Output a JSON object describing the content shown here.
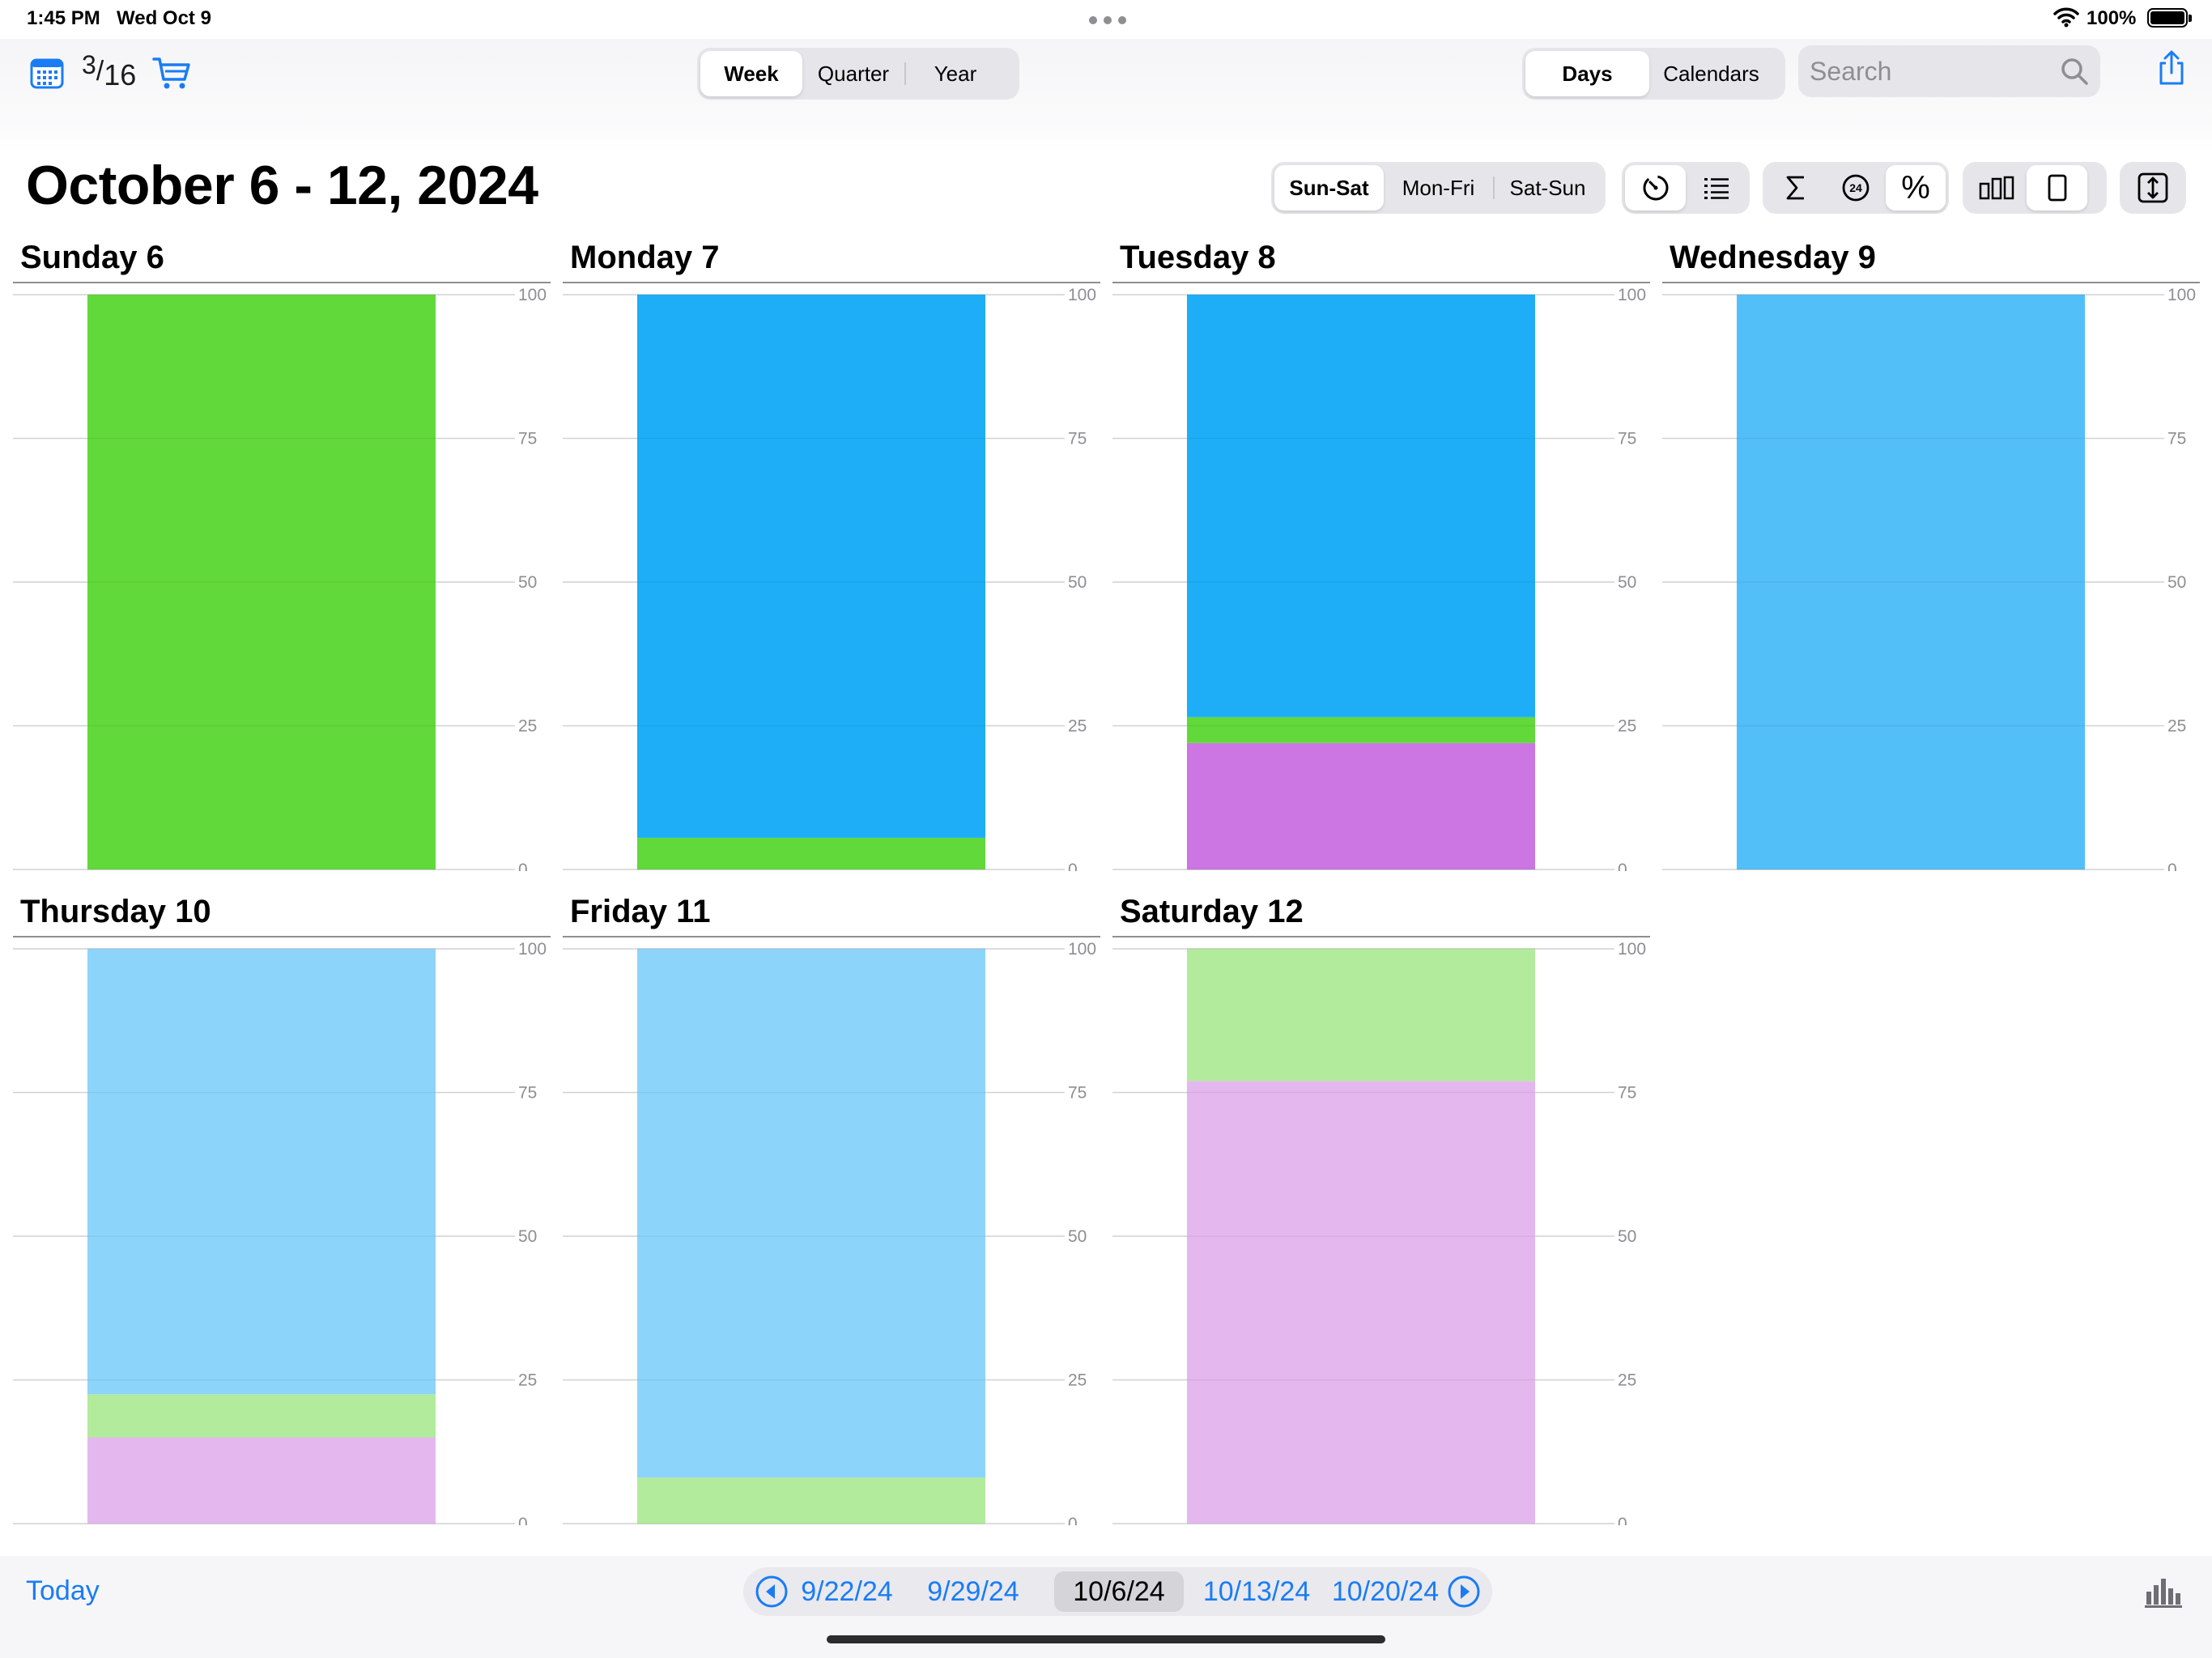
{
  "status_bar": {
    "time": "1:45 PM",
    "date": "Wed Oct 9",
    "battery": "100%"
  },
  "toolbar": {
    "badge_num": "3",
    "badge_den": "16",
    "range_tabs": [
      "Week",
      "Quarter",
      "Year"
    ],
    "range_selected": "Week",
    "view_tabs": [
      "Days",
      "Calendars"
    ],
    "view_selected": "Days",
    "search_placeholder": "Search"
  },
  "header": {
    "title": "October 6 - 12, 2024",
    "day_filter": [
      "Sun-Sat",
      "Mon-Fri",
      "Sat-Sun"
    ],
    "day_filter_selected": "Sun-Sat",
    "percent_symbol": "%",
    "icons": [
      "timer-icon",
      "list-icon",
      "sum-icon",
      "clock-24-icon",
      "percent-icon",
      "bar-chart-icon",
      "single-bar-icon",
      "expand-icon"
    ]
  },
  "colors": {
    "accent": "#1a7cf5",
    "green": "#62d93a",
    "blue": "#1eaef7",
    "light_blue": "#53bff8",
    "pale_blue": "#8dd4fb",
    "purple": "#cb76e3",
    "pale_green": "#b1eb9b",
    "pale_purple": "#e4b8ee"
  },
  "chart_data": [
    {
      "type": "bar",
      "title": "Sunday 6",
      "ylim": [
        0,
        100
      ],
      "yticks": [
        "100",
        "75",
        "50",
        "25",
        "0"
      ],
      "segments": [
        {
          "value": 100,
          "color": "#62d93a"
        }
      ]
    },
    {
      "type": "bar",
      "title": "Monday 7",
      "ylim": [
        0,
        100
      ],
      "yticks": [
        "100",
        "75",
        "50",
        "25",
        "0"
      ],
      "segments": [
        {
          "value": 5.5,
          "color": "#62d93a"
        },
        {
          "value": 94.5,
          "color": "#1eaef7"
        }
      ]
    },
    {
      "type": "bar",
      "title": "Tuesday 8",
      "ylim": [
        0,
        100
      ],
      "yticks": [
        "100",
        "75",
        "50",
        "25",
        "0"
      ],
      "segments": [
        {
          "value": 22,
          "color": "#cb76e3"
        },
        {
          "value": 4.5,
          "color": "#62d93a"
        },
        {
          "value": 73.5,
          "color": "#1eaef7"
        }
      ]
    },
    {
      "type": "bar",
      "title": "Wednesday 9",
      "ylim": [
        0,
        100
      ],
      "yticks": [
        "100",
        "75",
        "50",
        "25",
        "0"
      ],
      "segments": [
        {
          "value": 100,
          "color": "#53bff8"
        }
      ]
    },
    {
      "type": "bar",
      "title": "Thursday 10",
      "ylim": [
        0,
        100
      ],
      "yticks": [
        "100",
        "75",
        "50",
        "25",
        "0"
      ],
      "segments": [
        {
          "value": 15,
          "color": "#e4b8ee"
        },
        {
          "value": 7.5,
          "color": "#b1eb9b"
        },
        {
          "value": 77.5,
          "color": "#8dd4fb"
        }
      ]
    },
    {
      "type": "bar",
      "title": "Friday 11",
      "ylim": [
        0,
        100
      ],
      "yticks": [
        "100",
        "75",
        "50",
        "25",
        "0"
      ],
      "segments": [
        {
          "value": 8,
          "color": "#b1eb9b"
        },
        {
          "value": 92,
          "color": "#8dd4fb"
        }
      ]
    },
    {
      "type": "bar",
      "title": "Saturday 12",
      "ylim": [
        0,
        100
      ],
      "yticks": [
        "100",
        "75",
        "50",
        "25",
        "0"
      ],
      "segments": [
        {
          "value": 77,
          "color": "#e4b8ee"
        },
        {
          "value": 23,
          "color": "#b1eb9b"
        }
      ]
    }
  ],
  "bottom_bar": {
    "today_label": "Today",
    "weeks": [
      "9/22/24",
      "9/29/24",
      "10/6/24",
      "10/13/24",
      "10/20/24"
    ],
    "current_week": "10/6/24"
  }
}
